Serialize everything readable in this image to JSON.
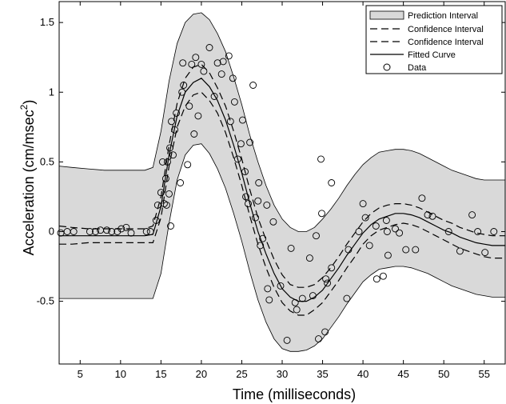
{
  "chart_data": {
    "type": "scatter",
    "title": "",
    "xlabel": "Time (milliseconds)",
    "ylabel_main": "Acceleration (cm/msec",
    "ylabel_exp": "2",
    "ylabel_close": ")",
    "xlim": [
      2.4,
      57.6
    ],
    "ylim": [
      -0.95,
      1.65
    ],
    "xticks": [
      5,
      10,
      15,
      20,
      25,
      30,
      35,
      40,
      45,
      50,
      55
    ],
    "yticks": [
      -0.5,
      0,
      0.5,
      1,
      1.5
    ],
    "xtick_labels": [
      "5",
      "10",
      "15",
      "20",
      "25",
      "30",
      "35",
      "40",
      "45",
      "50",
      "55"
    ],
    "ytick_labels": [
      "-0.5",
      "0",
      "0.5",
      "1",
      "1.5"
    ],
    "grid": false,
    "legend_placement": "top-right",
    "legend": [
      {
        "label": "Prediction Interval",
        "kind": "patch",
        "color": "#d9d9d9"
      },
      {
        "label": "Confidence Interval",
        "kind": "dashed",
        "color": "#000000"
      },
      {
        "label": "Confidence Interval",
        "kind": "dashed",
        "color": "#000000"
      },
      {
        "label": "Fitted Curve",
        "kind": "solid",
        "color": "#000000"
      },
      {
        "label": "Data",
        "kind": "marker",
        "color": "#000000"
      }
    ],
    "curve_x": [
      2.4,
      4,
      6,
      8,
      10,
      12,
      13,
      14,
      15,
      16,
      17,
      18,
      19,
      20,
      21,
      22,
      23,
      24,
      25,
      26,
      27,
      28,
      29,
      30,
      31,
      32,
      33,
      34,
      35,
      36,
      37,
      38,
      39,
      40,
      41,
      42,
      43,
      44,
      45,
      46,
      47,
      48,
      49,
      50,
      51,
      52,
      53,
      54,
      55,
      56,
      57,
      57.6
    ],
    "fitted_curve": [
      -0.03,
      -0.03,
      -0.03,
      -0.03,
      -0.03,
      -0.03,
      -0.03,
      -0.02,
      0.18,
      0.55,
      0.83,
      1.0,
      1.07,
      1.1,
      1.04,
      0.94,
      0.8,
      0.62,
      0.42,
      0.2,
      0.0,
      -0.16,
      -0.3,
      -0.41,
      -0.47,
      -0.5,
      -0.5,
      -0.47,
      -0.42,
      -0.34,
      -0.26,
      -0.17,
      -0.09,
      -0.01,
      0.05,
      0.09,
      0.11,
      0.13,
      0.13,
      0.12,
      0.1,
      0.07,
      0.04,
      0.01,
      -0.01,
      -0.04,
      -0.06,
      -0.08,
      -0.09,
      -0.1,
      -0.1,
      -0.1
    ],
    "ci_upper": [
      0.04,
      0.03,
      0.02,
      0.02,
      0.02,
      0.02,
      0.02,
      0.04,
      0.25,
      0.62,
      0.92,
      1.1,
      1.18,
      1.2,
      1.14,
      1.03,
      0.9,
      0.72,
      0.52,
      0.3,
      0.1,
      -0.06,
      -0.2,
      -0.31,
      -0.38,
      -0.4,
      -0.4,
      -0.38,
      -0.33,
      -0.26,
      -0.18,
      -0.09,
      -0.01,
      0.07,
      0.13,
      0.17,
      0.19,
      0.2,
      0.2,
      0.19,
      0.17,
      0.14,
      0.11,
      0.08,
      0.06,
      0.03,
      0.01,
      -0.01,
      -0.02,
      -0.03,
      -0.03,
      -0.03
    ],
    "ci_lower": [
      -0.09,
      -0.09,
      -0.08,
      -0.08,
      -0.08,
      -0.08,
      -0.08,
      -0.08,
      0.1,
      0.47,
      0.75,
      0.9,
      0.98,
      1.0,
      0.94,
      0.85,
      0.71,
      0.53,
      0.33,
      0.11,
      -0.09,
      -0.26,
      -0.4,
      -0.51,
      -0.57,
      -0.6,
      -0.6,
      -0.56,
      -0.51,
      -0.43,
      -0.35,
      -0.26,
      -0.18,
      -0.09,
      -0.03,
      0.01,
      0.03,
      0.05,
      0.06,
      0.05,
      0.03,
      0.0,
      -0.03,
      -0.06,
      -0.09,
      -0.12,
      -0.14,
      -0.16,
      -0.18,
      -0.19,
      -0.19,
      -0.19
    ],
    "pi_upper": [
      0.47,
      0.46,
      0.45,
      0.44,
      0.44,
      0.44,
      0.44,
      0.46,
      0.72,
      1.08,
      1.35,
      1.5,
      1.56,
      1.57,
      1.52,
      1.42,
      1.29,
      1.11,
      0.91,
      0.69,
      0.5,
      0.33,
      0.19,
      0.09,
      0.03,
      0.0,
      0.0,
      0.03,
      0.09,
      0.16,
      0.24,
      0.33,
      0.41,
      0.48,
      0.53,
      0.57,
      0.58,
      0.59,
      0.59,
      0.58,
      0.56,
      0.53,
      0.5,
      0.47,
      0.44,
      0.42,
      0.4,
      0.38,
      0.37,
      0.37,
      0.37,
      0.37
    ],
    "pi_lower": [
      -0.48,
      -0.48,
      -0.48,
      -0.48,
      -0.48,
      -0.48,
      -0.48,
      -0.48,
      -0.3,
      0.06,
      0.37,
      0.55,
      0.62,
      0.63,
      0.56,
      0.45,
      0.31,
      0.13,
      -0.07,
      -0.29,
      -0.49,
      -0.65,
      -0.77,
      -0.84,
      -0.86,
      -0.86,
      -0.85,
      -0.82,
      -0.77,
      -0.69,
      -0.61,
      -0.52,
      -0.44,
      -0.36,
      -0.31,
      -0.27,
      -0.26,
      -0.25,
      -0.25,
      -0.26,
      -0.28,
      -0.3,
      -0.33,
      -0.36,
      -0.39,
      -0.41,
      -0.43,
      -0.45,
      -0.46,
      -0.47,
      -0.47,
      -0.47
    ],
    "data_points": [
      [
        2.6,
        -0.01
      ],
      [
        3.4,
        0.0
      ],
      [
        4.2,
        0.0
      ],
      [
        6.2,
        0.0
      ],
      [
        6.9,
        0.0
      ],
      [
        7.5,
        0.01
      ],
      [
        8.3,
        0.01
      ],
      [
        8.9,
        0.0
      ],
      [
        9.6,
        0.0
      ],
      [
        10.1,
        0.02
      ],
      [
        10.7,
        0.03
      ],
      [
        11.3,
        -0.01
      ],
      [
        13.2,
        0.0
      ],
      [
        13.7,
        0.0
      ],
      [
        14.4,
        0.08
      ],
      [
        14.6,
        0.19
      ],
      [
        15.0,
        0.28
      ],
      [
        15.2,
        0.5
      ],
      [
        15.4,
        0.2
      ],
      [
        15.6,
        0.38
      ],
      [
        15.7,
        0.19
      ],
      [
        15.8,
        0.5
      ],
      [
        16.0,
        0.27
      ],
      [
        16.1,
        0.6
      ],
      [
        16.2,
        0.04
      ],
      [
        16.3,
        0.79
      ],
      [
        16.5,
        0.55
      ],
      [
        16.7,
        0.73
      ],
      [
        16.9,
        0.85
      ],
      [
        17.4,
        0.35
      ],
      [
        17.6,
        1.0
      ],
      [
        17.7,
        1.21
      ],
      [
        17.8,
        1.05
      ],
      [
        18.3,
        0.48
      ],
      [
        18.5,
        0.9
      ],
      [
        18.8,
        1.2
      ],
      [
        19.1,
        0.7
      ],
      [
        19.3,
        1.25
      ],
      [
        19.6,
        0.83
      ],
      [
        20.0,
        1.2
      ],
      [
        20.3,
        1.15
      ],
      [
        21.0,
        1.32
      ],
      [
        21.6,
        0.97
      ],
      [
        22.0,
        1.21
      ],
      [
        22.5,
        1.13
      ],
      [
        22.7,
        1.22
      ],
      [
        23.4,
        1.26
      ],
      [
        23.6,
        0.79
      ],
      [
        23.9,
        1.1
      ],
      [
        24.1,
        0.93
      ],
      [
        24.5,
        0.52
      ],
      [
        24.9,
        0.63
      ],
      [
        25.1,
        0.8
      ],
      [
        25.4,
        0.43
      ],
      [
        25.5,
        0.25
      ],
      [
        25.8,
        0.2
      ],
      [
        26.0,
        0.64
      ],
      [
        26.4,
        1.05
      ],
      [
        26.7,
        0.1
      ],
      [
        27.0,
        0.22
      ],
      [
        27.1,
        0.35
      ],
      [
        27.3,
        -0.1
      ],
      [
        27.6,
        -0.05
      ],
      [
        28.1,
        0.19
      ],
      [
        28.2,
        -0.41
      ],
      [
        28.4,
        -0.49
      ],
      [
        28.9,
        0.07
      ],
      [
        29.8,
        -0.39
      ],
      [
        30.6,
        -0.78
      ],
      [
        31.1,
        -0.12
      ],
      [
        31.6,
        -0.51
      ],
      [
        31.8,
        -0.56
      ],
      [
        32.5,
        -0.48
      ],
      [
        33.4,
        -0.19
      ],
      [
        33.8,
        -0.46
      ],
      [
        34.2,
        -0.03
      ],
      [
        34.5,
        -0.77
      ],
      [
        34.8,
        0.52
      ],
      [
        34.9,
        0.13
      ],
      [
        35.3,
        -0.72
      ],
      [
        35.4,
        -0.34
      ],
      [
        35.6,
        -0.37
      ],
      [
        36.1,
        0.35
      ],
      [
        36.1,
        -0.26
      ],
      [
        38.0,
        -0.48
      ],
      [
        38.2,
        -0.13
      ],
      [
        39.5,
        0.0
      ],
      [
        40.0,
        0.2
      ],
      [
        40.3,
        0.1
      ],
      [
        40.8,
        -0.1
      ],
      [
        41.6,
        0.04
      ],
      [
        41.7,
        -0.34
      ],
      [
        42.5,
        -0.32
      ],
      [
        42.9,
        0.08
      ],
      [
        43.0,
        0.0
      ],
      [
        43.1,
        -0.17
      ],
      [
        44.0,
        0.02
      ],
      [
        44.5,
        -0.01
      ],
      [
        45.3,
        -0.13
      ],
      [
        46.5,
        -0.13
      ],
      [
        47.3,
        0.24
      ],
      [
        48.0,
        0.12
      ],
      [
        48.6,
        0.11
      ],
      [
        50.6,
        0.0
      ],
      [
        52.0,
        -0.14
      ],
      [
        53.5,
        0.12
      ],
      [
        54.2,
        0.0
      ],
      [
        55.1,
        -0.15
      ],
      [
        56.2,
        0.0
      ]
    ]
  }
}
